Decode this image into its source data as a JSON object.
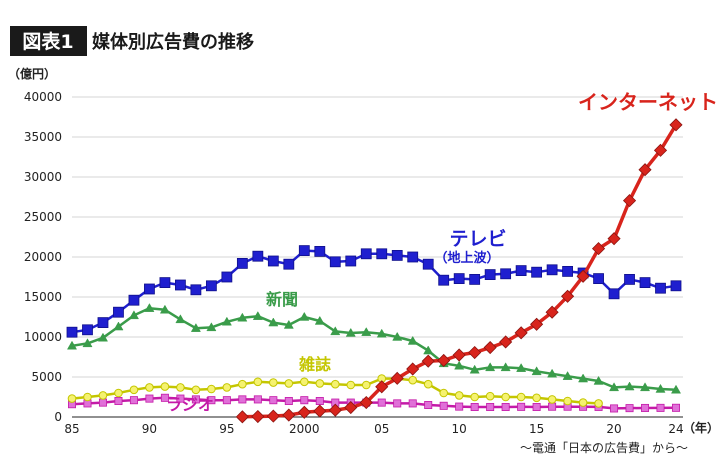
{
  "header": {
    "badge": "図表1",
    "title": "媒体別広告費の推移"
  },
  "source": "～電通「日本の広告費」から～",
  "chart_data": {
    "type": "line",
    "y_unit": "（億円）",
    "x_unit": "（年）",
    "ylim": [
      0,
      40000
    ],
    "yticks": [
      0,
      5000,
      10000,
      15000,
      20000,
      25000,
      30000,
      35000,
      40000
    ],
    "xlim": [
      1985,
      2024
    ],
    "xticks": [
      {
        "x": 1985,
        "label": "85"
      },
      {
        "x": 1990,
        "label": "90"
      },
      {
        "x": 1995,
        "label": "95"
      },
      {
        "x": 2000,
        "label": "2000"
      },
      {
        "x": 2005,
        "label": "05"
      },
      {
        "x": 2010,
        "label": "10"
      },
      {
        "x": 2015,
        "label": "15"
      },
      {
        "x": 2020,
        "label": "20"
      },
      {
        "x": 2024,
        "label": "24"
      }
    ],
    "grid": true,
    "series": [
      {
        "name": "テレビ",
        "sublabel": "（地上波）",
        "color": "#1f1fcf",
        "marker": "square",
        "x": [
          1985,
          1986,
          1987,
          1988,
          1989,
          1990,
          1991,
          1992,
          1993,
          1994,
          1995,
          1996,
          1997,
          1998,
          1999,
          2000,
          2001,
          2002,
          2003,
          2004,
          2005,
          2006,
          2007,
          2008,
          2009,
          2010,
          2011,
          2012,
          2013,
          2014,
          2015,
          2016,
          2017,
          2018,
          2019,
          2020,
          2021,
          2022,
          2023,
          2024
        ],
        "values": [
          10600,
          10900,
          11800,
          13100,
          14600,
          16000,
          16800,
          16500,
          15900,
          16400,
          17500,
          19200,
          20100,
          19500,
          19100,
          20800,
          20700,
          19400,
          19500,
          20400,
          20400,
          20200,
          20000,
          19100,
          17100,
          17300,
          17200,
          17800,
          17900,
          18300,
          18100,
          18400,
          18200,
          18000,
          17300,
          15400,
          17200,
          16800,
          16100,
          16400
        ]
      },
      {
        "name": "新聞",
        "color": "#3a9c4a",
        "marker": "triangle",
        "x": [
          1985,
          1986,
          1987,
          1988,
          1989,
          1990,
          1991,
          1992,
          1993,
          1994,
          1995,
          1996,
          1997,
          1998,
          1999,
          2000,
          2001,
          2002,
          2003,
          2004,
          2005,
          2006,
          2007,
          2008,
          2009,
          2010,
          2011,
          2012,
          2013,
          2014,
          2015,
          2016,
          2017,
          2018,
          2019,
          2020,
          2021,
          2022,
          2023,
          2024
        ],
        "values": [
          8900,
          9200,
          9900,
          11300,
          12700,
          13600,
          13400,
          12200,
          11100,
          11200,
          11900,
          12400,
          12600,
          11800,
          11500,
          12500,
          12000,
          10700,
          10500,
          10600,
          10400,
          10000,
          9500,
          8300,
          6700,
          6400,
          5900,
          6200,
          6200,
          6100,
          5700,
          5400,
          5100,
          4800,
          4500,
          3700,
          3800,
          3700,
          3500,
          3400
        ]
      },
      {
        "name": "雑誌",
        "color": "#c4c600",
        "fill": "#f5f270",
        "marker": "circle",
        "x": [
          1985,
          1986,
          1987,
          1988,
          1989,
          1990,
          1991,
          1992,
          1993,
          1994,
          1995,
          1996,
          1997,
          1998,
          1999,
          2000,
          2001,
          2002,
          2003,
          2004,
          2005,
          2006,
          2007,
          2008,
          2009,
          2010,
          2011,
          2012,
          2013,
          2014,
          2015,
          2016,
          2017,
          2018,
          2019
        ],
        "values": [
          2300,
          2500,
          2700,
          3000,
          3400,
          3700,
          3800,
          3700,
          3400,
          3500,
          3700,
          4100,
          4400,
          4300,
          4200,
          4400,
          4200,
          4100,
          4000,
          4000,
          4800,
          4800,
          4600,
          4100,
          3000,
          2700,
          2500,
          2600,
          2500,
          2500,
          2400,
          2200,
          2000,
          1800,
          1700
        ]
      },
      {
        "name": "ラジオ",
        "color": "#c41aa8",
        "fill": "#e070d8",
        "marker": "square",
        "x": [
          1985,
          1986,
          1987,
          1988,
          1989,
          1990,
          1991,
          1992,
          1993,
          1994,
          1995,
          1996,
          1997,
          1998,
          1999,
          2000,
          2001,
          2002,
          2003,
          2004,
          2005,
          2006,
          2007,
          2008,
          2009,
          2010,
          2011,
          2012,
          2013,
          2014,
          2015,
          2016,
          2017,
          2018,
          2019,
          2020,
          2021,
          2022,
          2023,
          2024
        ],
        "values": [
          1600,
          1700,
          1800,
          2000,
          2100,
          2300,
          2400,
          2300,
          2200,
          2100,
          2100,
          2200,
          2200,
          2100,
          2000,
          2100,
          2000,
          1800,
          1800,
          1800,
          1800,
          1700,
          1700,
          1500,
          1400,
          1300,
          1250,
          1250,
          1250,
          1270,
          1250,
          1290,
          1290,
          1280,
          1260,
          1070,
          1110,
          1130,
          1140,
          1150
        ]
      },
      {
        "name": "インターネット",
        "color": "#d8241c",
        "marker": "diamond",
        "x": [
          1996,
          1997,
          1998,
          1999,
          2000,
          2001,
          2002,
          2003,
          2004,
          2005,
          2006,
          2007,
          2008,
          2009,
          2010,
          2011,
          2012,
          2013,
          2014,
          2015,
          2016,
          2017,
          2018,
          2019,
          2020,
          2021,
          2022,
          2023,
          2024
        ],
        "values": [
          20,
          60,
          110,
          240,
          590,
          740,
          850,
          1180,
          1810,
          3780,
          4830,
          6000,
          6980,
          7070,
          7750,
          8060,
          8680,
          9380,
          10520,
          11590,
          13100,
          15090,
          17590,
          21050,
          22290,
          27050,
          30910,
          33330,
          36520
        ]
      }
    ]
  }
}
